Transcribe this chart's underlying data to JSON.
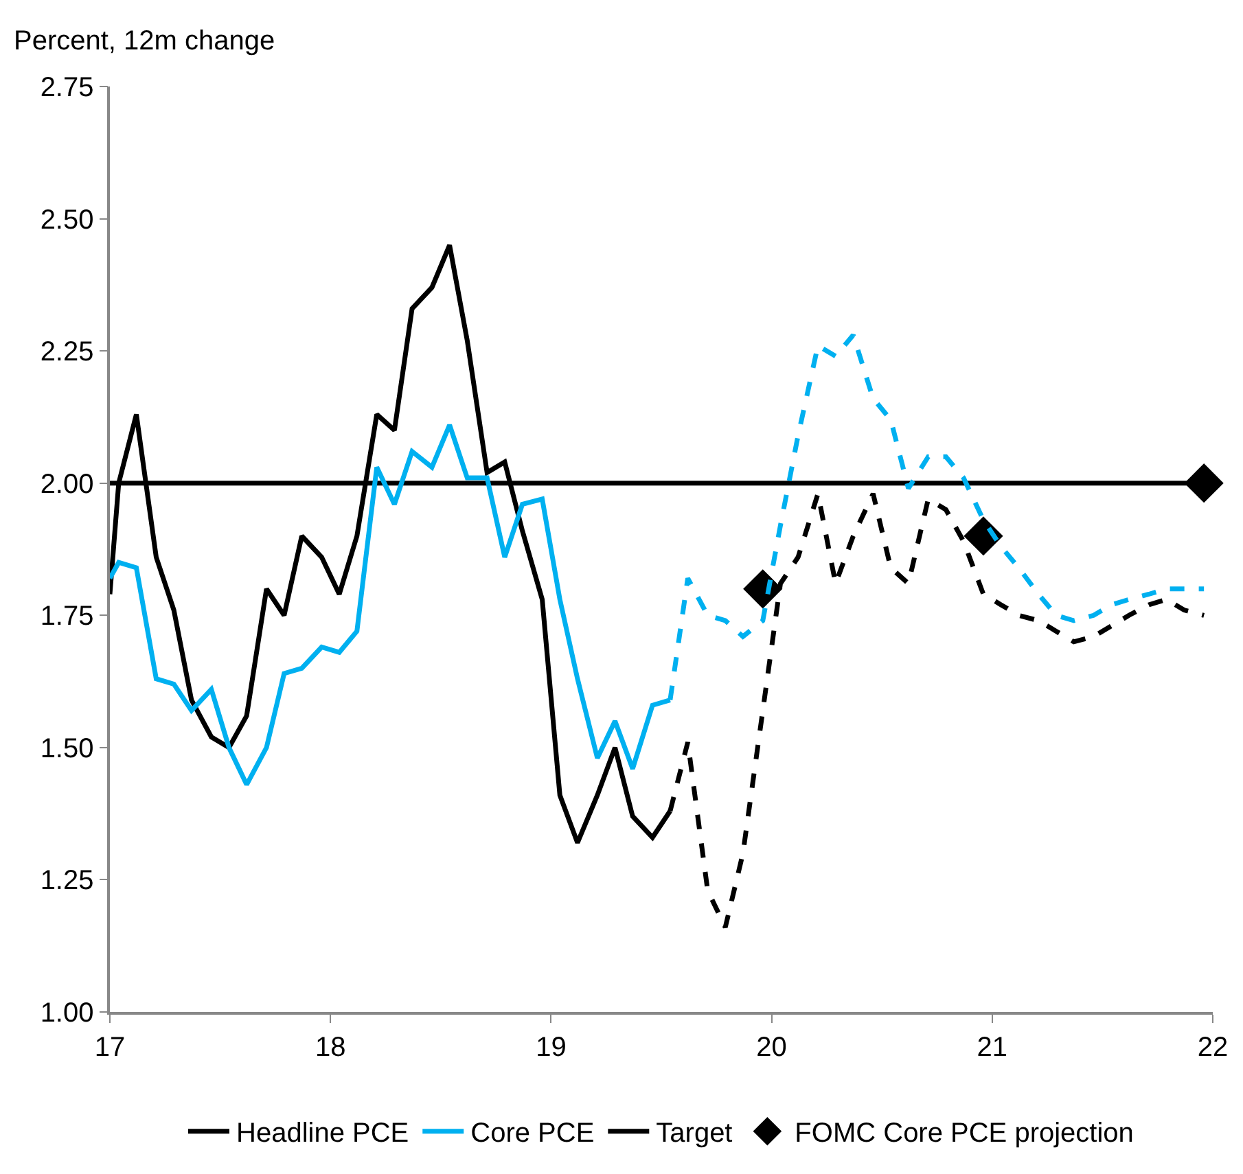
{
  "chart_data": {
    "type": "line",
    "ylabel": "Percent, 12m change",
    "xlim": [
      17,
      22
    ],
    "xticks": [
      17,
      18,
      19,
      20,
      21,
      22
    ],
    "ylim": [
      1.0,
      2.75
    ],
    "yticks": [
      {
        "value": 1.0,
        "label": "1.00"
      },
      {
        "value": 1.25,
        "label": "1.25"
      },
      {
        "value": 1.5,
        "label": "1.50"
      },
      {
        "value": 1.75,
        "label": "1.75"
      },
      {
        "value": 2.0,
        "label": "2.00"
      },
      {
        "value": 2.25,
        "label": "2.25"
      },
      {
        "value": 2.5,
        "label": "2.50"
      },
      {
        "value": 2.75,
        "label": "2.75"
      }
    ],
    "grid": false,
    "legend": "bottom",
    "ref_lines": [
      {
        "axis": "y",
        "value": 2.0,
        "label": "Target",
        "color": "#000000",
        "line_style": "solid"
      }
    ],
    "series": [
      {
        "name": "Headline PCE",
        "color": "#000000",
        "line_style": "solid",
        "x": [
          17.0,
          17.04,
          17.12,
          17.21,
          17.29,
          17.37,
          17.46,
          17.54,
          17.62,
          17.71,
          17.79,
          17.87,
          17.96,
          18.04,
          18.12,
          18.21,
          18.29,
          18.37,
          18.46,
          18.54,
          18.62,
          18.71,
          18.79,
          18.87,
          18.96,
          19.04,
          19.12,
          19.21,
          19.29,
          19.37,
          19.46,
          19.54
        ],
        "values": [
          1.79,
          2.0,
          2.13,
          1.86,
          1.76,
          1.59,
          1.52,
          1.5,
          1.56,
          1.8,
          1.75,
          1.9,
          1.86,
          1.79,
          1.9,
          2.13,
          2.1,
          2.33,
          2.37,
          2.45,
          2.27,
          2.02,
          2.04,
          1.91,
          1.78,
          1.41,
          1.32,
          1.41,
          1.5,
          1.37,
          1.33,
          1.38
        ]
      },
      {
        "name": "Core PCE",
        "color": "#00b0f0",
        "line_style": "solid",
        "x": [
          17.0,
          17.04,
          17.12,
          17.21,
          17.29,
          17.37,
          17.46,
          17.54,
          17.62,
          17.71,
          17.79,
          17.87,
          17.96,
          18.04,
          18.12,
          18.21,
          18.29,
          18.37,
          18.46,
          18.54,
          18.62,
          18.71,
          18.79,
          18.87,
          18.96,
          19.04,
          19.12,
          19.21,
          19.29,
          19.37,
          19.46,
          19.54
        ],
        "values": [
          1.82,
          1.85,
          1.84,
          1.63,
          1.62,
          1.57,
          1.61,
          1.5,
          1.43,
          1.5,
          1.64,
          1.65,
          1.69,
          1.68,
          1.72,
          2.03,
          1.96,
          2.06,
          2.03,
          2.11,
          2.01,
          2.01,
          1.86,
          1.96,
          1.97,
          1.78,
          1.63,
          1.48,
          1.55,
          1.46,
          1.58,
          1.59
        ]
      },
      {
        "name": "FOMC Core PCE projection",
        "type": "scatter",
        "marker": "diamond",
        "color": "#000000",
        "x": [
          19.96,
          20.96,
          21.96
        ],
        "values": [
          1.8,
          1.9,
          2.0
        ]
      },
      {
        "color": "#000000",
        "line_style": "dashed",
        "x": [
          19.54,
          19.62,
          19.71,
          19.79,
          19.87,
          19.96,
          20.04,
          20.12,
          20.21,
          20.29,
          20.37,
          20.46,
          20.54,
          20.62,
          20.71,
          20.79,
          20.87,
          20.96,
          21.04,
          21.12,
          21.21,
          21.29,
          21.37,
          21.46,
          21.54,
          21.62,
          21.71,
          21.79,
          21.87,
          21.96
        ],
        "values": [
          1.38,
          1.51,
          1.23,
          1.16,
          1.3,
          1.57,
          1.81,
          1.86,
          1.98,
          1.81,
          1.9,
          1.98,
          1.84,
          1.81,
          1.97,
          1.95,
          1.89,
          1.79,
          1.77,
          1.75,
          1.74,
          1.72,
          1.7,
          1.71,
          1.73,
          1.75,
          1.77,
          1.78,
          1.76,
          1.75
        ]
      },
      {
        "color": "#00b0f0",
        "line_style": "dashed",
        "x": [
          19.54,
          19.62,
          19.71,
          19.79,
          19.87,
          19.96,
          20.04,
          20.12,
          20.21,
          20.29,
          20.37,
          20.46,
          20.54,
          20.62,
          20.71,
          20.79,
          20.87,
          20.96,
          21.04,
          21.12,
          21.21,
          21.29,
          21.37,
          21.46,
          21.54,
          21.62,
          21.71,
          21.79,
          21.87,
          21.96
        ],
        "values": [
          1.59,
          1.82,
          1.75,
          1.74,
          1.71,
          1.74,
          1.92,
          2.09,
          2.26,
          2.24,
          2.28,
          2.16,
          2.12,
          1.99,
          2.05,
          2.05,
          2.01,
          1.93,
          1.88,
          1.84,
          1.79,
          1.75,
          1.74,
          1.75,
          1.77,
          1.78,
          1.79,
          1.8,
          1.8,
          1.8
        ]
      }
    ]
  }
}
